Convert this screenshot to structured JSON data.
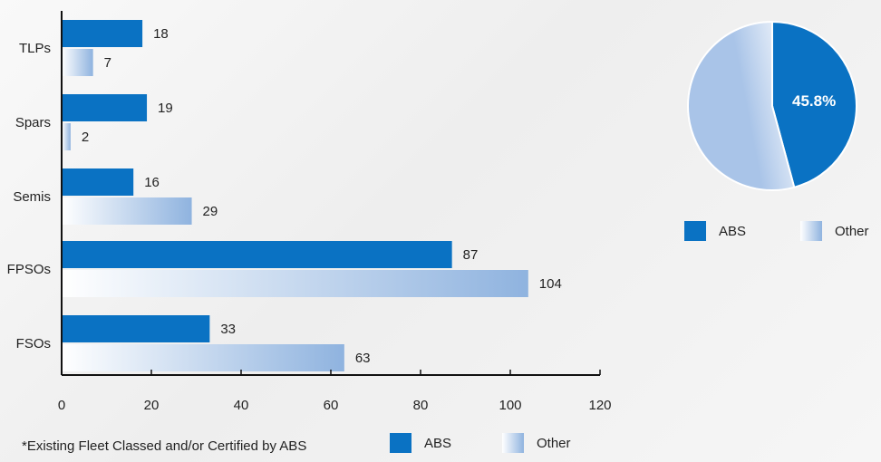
{
  "colors": {
    "abs": "#0a72c3",
    "other_light": "#ffffff",
    "other_dark": "#8fb3df",
    "pie_other": "#a9c4e8"
  },
  "chart_data": [
    {
      "type": "bar",
      "orientation": "horizontal",
      "categories": [
        "TLPs",
        "Spars",
        "Semis",
        "FPSOs",
        "FSOs"
      ],
      "series": [
        {
          "name": "ABS",
          "values": [
            18,
            19,
            16,
            87,
            33
          ]
        },
        {
          "name": "Other",
          "values": [
            7,
            2,
            29,
            104,
            63
          ]
        }
      ],
      "xlim": [
        0,
        120
      ],
      "xticks": [
        0,
        20,
        40,
        60,
        80,
        100,
        120
      ],
      "grid": false,
      "legend": "bottom"
    },
    {
      "type": "pie",
      "slices": [
        {
          "name": "ABS",
          "value": 45.8,
          "label": "45.8%"
        },
        {
          "name": "Other",
          "value": 54.2
        }
      ],
      "legend": "bottom"
    }
  ],
  "footnote": "*Existing Fleet Classed and/or Certified by ABS",
  "legend_bar": {
    "abs": "ABS",
    "other": "Other"
  },
  "legend_pie": {
    "abs": "ABS",
    "other": "Other"
  }
}
